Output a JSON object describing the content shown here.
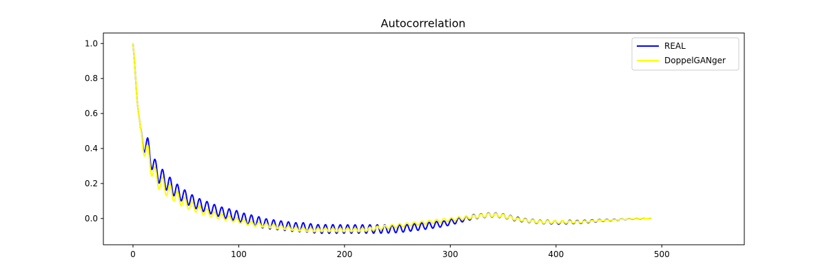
{
  "chart_data": {
    "type": "line",
    "title": "Autocorrelation",
    "xlabel": "",
    "ylabel": "",
    "xlim": [
      -28,
      578
    ],
    "ylim": [
      -0.15,
      1.06
    ],
    "x_ticks": [
      0,
      100,
      200,
      300,
      400,
      500
    ],
    "y_ticks": [
      0.0,
      0.2,
      0.4,
      0.6,
      0.8,
      1.0
    ],
    "x_tick_labels": [
      "0",
      "100",
      "200",
      "300",
      "400",
      "500"
    ],
    "y_tick_labels": [
      "0.0",
      "0.2",
      "0.4",
      "0.6",
      "0.8",
      "1.0"
    ],
    "grid": false,
    "legend_position": "top-right",
    "x_start": 0,
    "x_step": 7,
    "series": [
      {
        "name": "REAL",
        "color": "#0000ff",
        "values": [
          1.0,
          0.47,
          0.4,
          0.28,
          0.23,
          0.19,
          0.155,
          0.125,
          0.1,
          0.08,
          0.065,
          0.05,
          0.035,
          0.025,
          0.015,
          0.0,
          -0.01,
          -0.02,
          -0.03,
          -0.035,
          -0.04,
          -0.045,
          -0.05,
          -0.05,
          -0.055,
          -0.06,
          -0.06,
          -0.06,
          -0.06,
          -0.06,
          -0.06,
          -0.06,
          -0.06,
          -0.06,
          -0.06,
          -0.06,
          -0.058,
          -0.055,
          -0.05,
          -0.045,
          -0.04,
          -0.035,
          -0.03,
          -0.02,
          -0.01,
          0.0,
          0.01,
          0.015,
          0.02,
          0.02,
          0.015,
          0.005,
          -0.005,
          -0.01,
          -0.015,
          -0.02,
          -0.02,
          -0.022,
          -0.022,
          -0.02,
          -0.02,
          -0.018,
          -0.015,
          -0.012,
          -0.01,
          -0.008,
          -0.005,
          -0.003,
          -0.002,
          -0.001,
          0.0
        ],
        "amplitude": [
          0.0,
          0.05,
          0.06,
          0.055,
          0.05,
          0.045,
          0.04,
          0.038,
          0.035,
          0.033,
          0.032,
          0.03,
          0.03,
          0.03,
          0.03,
          0.03,
          0.03,
          0.03,
          0.028,
          0.027,
          0.026,
          0.026,
          0.026,
          0.026,
          0.025,
          0.025,
          0.025,
          0.025,
          0.024,
          0.024,
          0.024,
          0.024,
          0.024,
          0.024,
          0.024,
          0.022,
          0.022,
          0.02,
          0.02,
          0.02,
          0.018,
          0.018,
          0.016,
          0.016,
          0.015,
          0.014,
          0.013,
          0.012,
          0.012,
          0.012,
          0.012,
          0.012,
          0.012,
          0.01,
          0.01,
          0.01,
          0.01,
          0.01,
          0.01,
          0.01,
          0.009,
          0.008,
          0.007,
          0.006,
          0.005,
          0.004,
          0.003,
          0.002,
          0.002,
          0.001,
          0.0
        ]
      },
      {
        "name": "DoppelGANger",
        "color": "#ffff00",
        "values": [
          1.0,
          0.47,
          0.36,
          0.24,
          0.19,
          0.155,
          0.12,
          0.09,
          0.07,
          0.05,
          0.035,
          0.02,
          0.01,
          0.0,
          -0.01,
          -0.02,
          -0.03,
          -0.035,
          -0.04,
          -0.045,
          -0.05,
          -0.055,
          -0.06,
          -0.062,
          -0.065,
          -0.065,
          -0.065,
          -0.065,
          -0.065,
          -0.065,
          -0.065,
          -0.065,
          -0.06,
          -0.055,
          -0.05,
          -0.045,
          -0.04,
          -0.035,
          -0.03,
          -0.025,
          -0.02,
          -0.015,
          -0.01,
          -0.005,
          0.0,
          0.005,
          0.01,
          0.015,
          0.02,
          0.02,
          0.015,
          0.005,
          -0.005,
          -0.01,
          -0.015,
          -0.02,
          -0.02,
          -0.02,
          -0.02,
          -0.02,
          -0.02,
          -0.018,
          -0.015,
          -0.012,
          -0.01,
          -0.008,
          -0.005,
          -0.003,
          -0.002,
          -0.001,
          0.0
        ],
        "amplitude": [
          0.0,
          0.05,
          0.06,
          0.05,
          0.045,
          0.04,
          0.035,
          0.03,
          0.025,
          0.022,
          0.02,
          0.018,
          0.016,
          0.015,
          0.014,
          0.013,
          0.012,
          0.012,
          0.012,
          0.012,
          0.011,
          0.011,
          0.011,
          0.011,
          0.011,
          0.011,
          0.011,
          0.011,
          0.011,
          0.011,
          0.011,
          0.011,
          0.011,
          0.011,
          0.011,
          0.011,
          0.011,
          0.01,
          0.01,
          0.01,
          0.01,
          0.01,
          0.01,
          0.01,
          0.01,
          0.01,
          0.01,
          0.01,
          0.01,
          0.01,
          0.01,
          0.01,
          0.008,
          0.008,
          0.008,
          0.008,
          0.008,
          0.008,
          0.008,
          0.007,
          0.006,
          0.005,
          0.004,
          0.004,
          0.003,
          0.002,
          0.002,
          0.001,
          0.001,
          0.0,
          0.0
        ]
      }
    ]
  }
}
